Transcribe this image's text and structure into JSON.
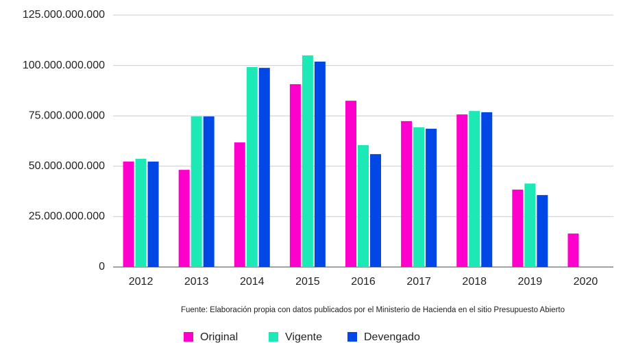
{
  "chart_data": {
    "type": "bar",
    "categories": [
      "2012",
      "2013",
      "2014",
      "2015",
      "2016",
      "2017",
      "2018",
      "2019",
      "2020"
    ],
    "series": [
      {
        "name": "Original",
        "color": "#ff00cc",
        "values": [
          52300000000,
          48200000000,
          61800000000,
          90700000000,
          82500000000,
          72400000000,
          75700000000,
          38400000000,
          16600000000
        ]
      },
      {
        "name": "Vigente",
        "color": "#1de9b6",
        "values": [
          53700000000,
          74700000000,
          99200000000,
          105000000000,
          60500000000,
          69300000000,
          77400000000,
          41400000000,
          null
        ]
      },
      {
        "name": "Devengado",
        "color": "#0047e6",
        "values": [
          52300000000,
          74700000000,
          98800000000,
          101900000000,
          56000000000,
          68600000000,
          76800000000,
          35700000000,
          null
        ]
      }
    ],
    "ylim": [
      0,
      125000000000
    ],
    "yticks": [
      {
        "value": 0,
        "label": "0"
      },
      {
        "value": 25000000000,
        "label": "25.000.000.000"
      },
      {
        "value": 50000000000,
        "label": "50.000.000.000"
      },
      {
        "value": 75000000000,
        "label": "75.000.000.000"
      },
      {
        "value": 100000000000,
        "label": "100.000.000.000"
      },
      {
        "value": 125000000000,
        "label": "125.000.000.000"
      }
    ],
    "grid": true,
    "legend": "bottom",
    "annotation": "Fuente: Elaboración propia con datos publicados por el Ministerio de Hacienda en el sitio Presupuesto Abierto"
  }
}
